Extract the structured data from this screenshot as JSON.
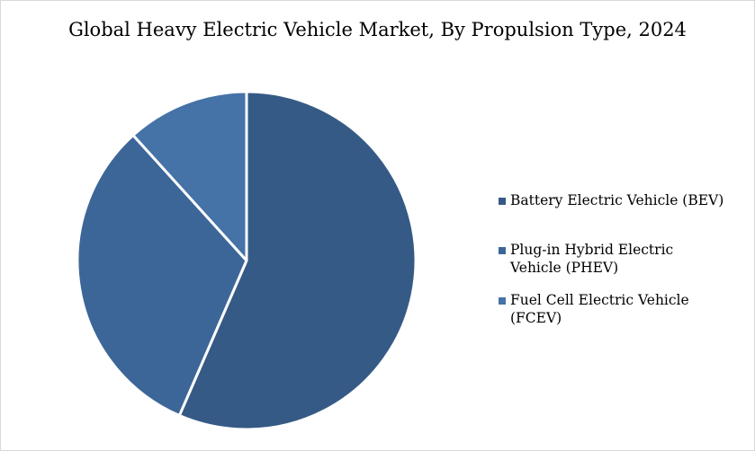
{
  "chart_data": {
    "type": "pie",
    "title": "Global Heavy Electric Vehicle Market, By Propulsion Type, 2024",
    "categories": [
      "Battery Electric Vehicle (BEV)",
      "Plug-in Hybrid Electric Vehicle (PHEV)",
      "Fuel Cell Electric Vehicle (FCEV)"
    ],
    "values": [
      56.5,
      31.8,
      11.7
    ],
    "unit": "share (%) estimated",
    "colors": [
      "#365a86",
      "#3d6698",
      "#4572a7"
    ],
    "legend_position": "right",
    "start_angle": "12 o'clock, clockwise"
  }
}
